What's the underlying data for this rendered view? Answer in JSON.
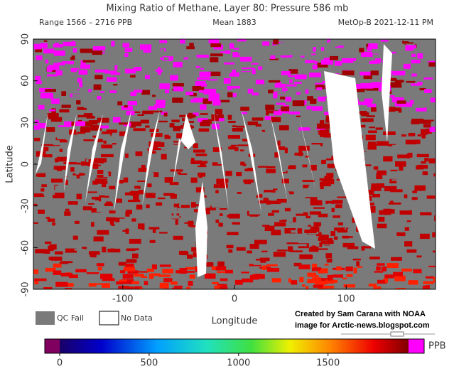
{
  "header": {
    "title": "Mixing Ratio of Methane, Layer 80: Pressure 586 mb",
    "range": "Range 1566 – 2716 PPB",
    "mean": "Mean 1883",
    "satellite": "MetOp-B 2021-12-11 PM"
  },
  "map": {
    "xlabel": "Longitude",
    "ylabel": "Latitude",
    "xlim": [
      -180,
      180
    ],
    "ylim": [
      -90,
      90
    ],
    "xticks": [
      -100,
      0,
      100
    ],
    "yticks": [
      90,
      60,
      30,
      0,
      -30,
      -60,
      -90
    ]
  },
  "legend": {
    "qc_fail": "QC Fail",
    "no_data": "No Data"
  },
  "credit": {
    "line1": "Created by Sam Carana with NOAA",
    "line2": "image for Arctic-news.blogspot.com"
  },
  "colorbar": {
    "lim": [
      0,
      1950
    ],
    "ticks": [
      0,
      500,
      1000,
      1500
    ],
    "unit": "PPB"
  }
}
